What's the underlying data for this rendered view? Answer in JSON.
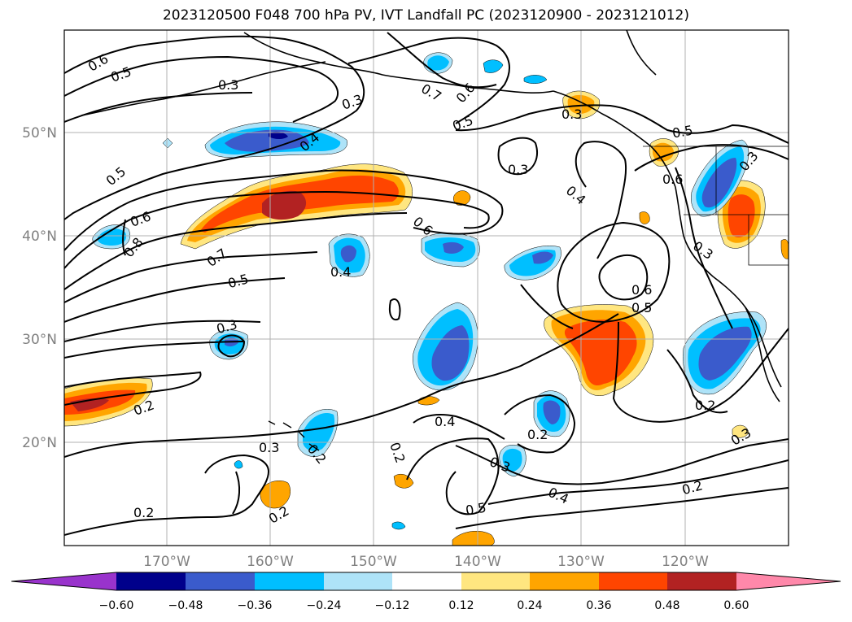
{
  "title": "2023120500 F048 700 hPa PV, IVT Landfall PC (2023120900 - 2023121012)",
  "latitude_labels": [
    "50°N",
    "40°N",
    "30°N",
    "20°N"
  ],
  "longitude_labels": [
    "170°W",
    "160°W",
    "150°W",
    "140°W",
    "130°W",
    "120°W"
  ],
  "colorbar": {
    "ticks": [
      "−0.60",
      "−0.48",
      "−0.36",
      "−0.24",
      "−0.12",
      "0.12",
      "0.24",
      "0.36",
      "0.48",
      "0.60"
    ],
    "colors": [
      "#9933cc",
      "#00008b",
      "#3a5bcc",
      "#00bfff",
      "#aee3f8",
      "#ffffff",
      "#ffe680",
      "#ffa500",
      "#ff4500",
      "#b22222",
      "#ff88aa"
    ]
  },
  "contour_labels": [
    "0.6",
    "0.5",
    "0.3",
    "0.3",
    "0.7",
    "0.6",
    "0.5",
    "0.3",
    "0.4",
    "0.5",
    "0.6",
    "0.3",
    "0.4",
    "0.3",
    "0.5",
    "0.6",
    "0.8",
    "0.7",
    "0.5",
    "0.6",
    "0.4",
    "0.3",
    "0.6",
    "0.5",
    "0.3",
    "0.2",
    "0.2",
    "0.4",
    "0.2",
    "0.3",
    "0.3",
    "0.2",
    "0.4",
    "0.5",
    "0.2",
    "0.2",
    "0.2",
    "0.3",
    "0.2"
  ]
}
